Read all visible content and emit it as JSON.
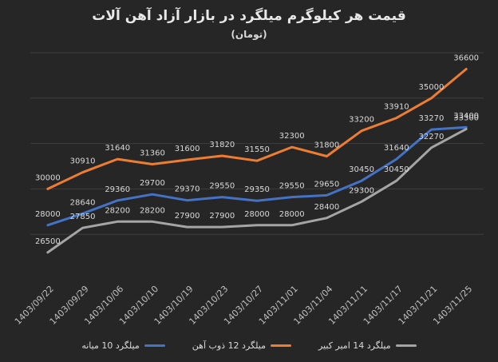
{
  "chart_data": {
    "type": "line",
    "title": "قیمت هر کیلوگرم میلگرد در بازار آزاد آهن آلات",
    "subtitle": "(تومان)",
    "categories": [
      "1403/09/22",
      "1403/09/29",
      "1403/10/06",
      "1403/10/10",
      "1403/10/19",
      "1403/10/23",
      "1403/10/27",
      "1403/11/01",
      "1403/11/04",
      "1403/11/11",
      "1403/11/17",
      "1403/11/21",
      "1403/11/25"
    ],
    "ylim": [
      25000,
      37500
    ],
    "grid": true,
    "legend_position": "bottom",
    "series": [
      {
        "name": "میلگرد 10 میانه",
        "color": "#4472c4",
        "values": [
          28000,
          28640,
          29360,
          29700,
          29370,
          29550,
          29350,
          29550,
          29650,
          30450,
          31640,
          33270,
          33400
        ]
      },
      {
        "name": "میلگرد 12 ذوب آهن",
        "color": "#ed7d31",
        "values": [
          30000,
          30910,
          31640,
          31360,
          31600,
          31820,
          31550,
          32300,
          31800,
          33200,
          33910,
          35000,
          36600
        ]
      },
      {
        "name": "میلگرد 14 امیر کبیر",
        "color": "#a5a5a5",
        "values": [
          26500,
          27850,
          28200,
          28200,
          27900,
          27900,
          28000,
          28000,
          28400,
          29300,
          30450,
          32270,
          33300
        ]
      }
    ]
  }
}
